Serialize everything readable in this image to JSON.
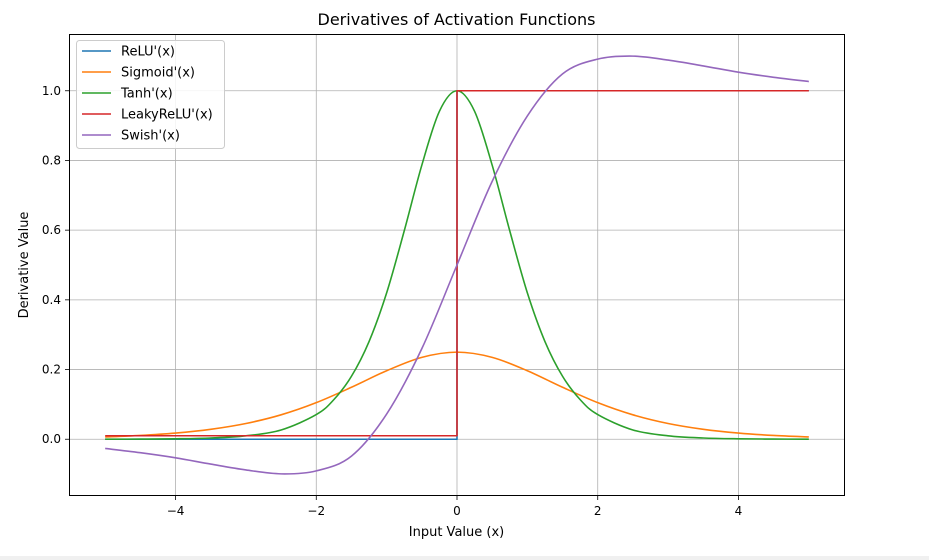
{
  "chart_data": {
    "type": "line",
    "title": "Derivatives of Activation Functions",
    "xlabel": "Input Value (x)",
    "ylabel": "Derivative Value",
    "xlim": [
      -5.5,
      5.5
    ],
    "ylim": [
      -0.16,
      1.16
    ],
    "xticks": [
      -4,
      -2,
      0,
      2,
      4
    ],
    "xtick_labels": [
      "−4",
      "−2",
      "0",
      "2",
      "4"
    ],
    "yticks": [
      0.0,
      0.2,
      0.4,
      0.6,
      0.8,
      1.0
    ],
    "ytick_labels": [
      "0.0",
      "0.2",
      "0.4",
      "0.6",
      "0.8",
      "1.0"
    ],
    "grid": true,
    "legend_position": "top-left",
    "series": [
      {
        "name": "ReLU'(x)",
        "color": "#1f77b4",
        "x": [
          -5,
          0,
          0,
          5
        ],
        "y": [
          0,
          0,
          1,
          1
        ]
      },
      {
        "name": "Sigmoid'(x)",
        "color": "#ff7f0e",
        "x": [
          -5,
          -4.5,
          -4,
          -3.5,
          -3,
          -2.5,
          -2,
          -1.5,
          -1,
          -0.5,
          0,
          0.5,
          1,
          1.5,
          2,
          2.5,
          3,
          3.5,
          4,
          4.5,
          5
        ],
        "y": [
          0.0066,
          0.0109,
          0.0177,
          0.0285,
          0.0452,
          0.0701,
          0.105,
          0.1491,
          0.1966,
          0.235,
          0.25,
          0.235,
          0.1966,
          0.1491,
          0.105,
          0.0701,
          0.0452,
          0.0285,
          0.0177,
          0.0109,
          0.0066
        ]
      },
      {
        "name": "Tanh'(x)",
        "color": "#2ca02c",
        "x": [
          -5,
          -4.5,
          -4,
          -3.5,
          -3,
          -2.5,
          -2,
          -1.75,
          -1.5,
          -1.25,
          -1,
          -0.75,
          -0.5,
          -0.25,
          0,
          0.25,
          0.5,
          0.75,
          1,
          1.25,
          1.5,
          1.75,
          2,
          2.5,
          3,
          3.5,
          4,
          4.5,
          5
        ],
        "y": [
          0.0002,
          0.0005,
          0.0013,
          0.0036,
          0.0099,
          0.0266,
          0.0707,
          0.1137,
          0.1807,
          0.2804,
          0.42,
          0.5979,
          0.7864,
          0.9411,
          1.0,
          0.9411,
          0.7864,
          0.5979,
          0.42,
          0.2804,
          0.1807,
          0.1137,
          0.0707,
          0.0266,
          0.0099,
          0.0036,
          0.0013,
          0.0005,
          0.0002
        ]
      },
      {
        "name": "LeakyReLU'(x)",
        "color": "#d62728",
        "x": [
          -5,
          0,
          0,
          5
        ],
        "y": [
          0.01,
          0.01,
          1,
          1
        ]
      },
      {
        "name": "Swish'(x)",
        "color": "#9467bd",
        "x": [
          -5,
          -4.5,
          -4,
          -3.5,
          -3,
          -2.5,
          -2,
          -1.5,
          -1,
          -0.5,
          0,
          0.5,
          1,
          1.5,
          2,
          2.5,
          3,
          3.5,
          4,
          4.5,
          5
        ],
        "y": [
          -0.0265,
          -0.0387,
          -0.0533,
          -0.0713,
          -0.0881,
          -0.0994,
          -0.0908,
          -0.0484,
          0.0723,
          0.26,
          0.5,
          0.74,
          0.9277,
          1.0484,
          1.0908,
          1.0994,
          1.0881,
          1.0713,
          1.0533,
          1.0387,
          1.0265
        ]
      }
    ]
  }
}
